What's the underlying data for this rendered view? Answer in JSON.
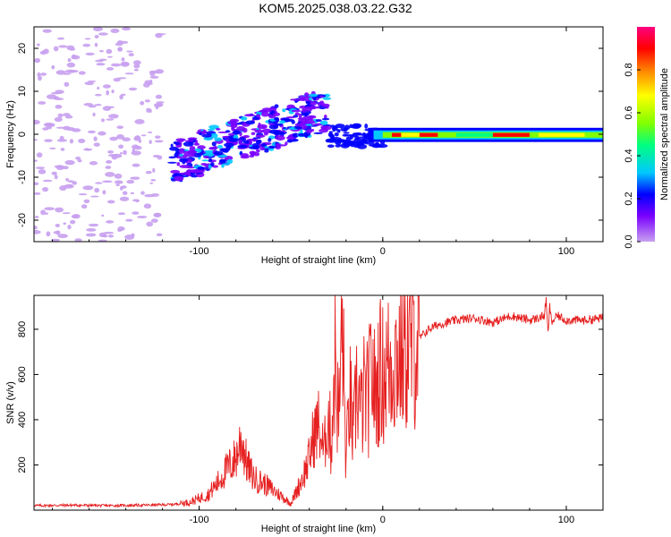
{
  "title": "KOM5.2025.038.03.22.G32",
  "chart_data": [
    {
      "type": "heatmap",
      "xlabel": "Height of straight line (km)",
      "ylabel": "Frequency (Hz)",
      "xlim": [
        -190,
        120
      ],
      "ylim": [
        -25,
        25
      ],
      "xticks": [
        -100,
        0,
        100
      ],
      "yticks": [
        -20,
        -10,
        0,
        10,
        20
      ],
      "colorbar": {
        "label": "Normalized spectral amplitude",
        "range": [
          0,
          1
        ],
        "ticks": [
          0.0,
          0.2,
          0.4,
          0.6,
          0.8
        ],
        "colors": [
          "#c8a0f0",
          "#7a00ff",
          "#0000ff",
          "#00c8ff",
          "#00ff80",
          "#80ff00",
          "#ffff00",
          "#ff8000",
          "#ff0000",
          "#ff0080"
        ]
      },
      "features": [
        {
          "x_range": [
            -190,
            -120
          ],
          "freq_range": [
            -25,
            25
          ],
          "amplitude": 0.03,
          "note": "sparse noise"
        },
        {
          "x_range": [
            -115,
            -30
          ],
          "freq_range": [
            -12,
            10
          ],
          "amplitude": 0.1
        },
        {
          "x_range": [
            -30,
            0
          ],
          "freq_range": [
            -3,
            2
          ],
          "amplitude": 0.2
        },
        {
          "x_range": [
            0,
            120
          ],
          "freq_range": [
            -1.5,
            1
          ],
          "amplitude": 0.9
        }
      ]
    },
    {
      "type": "line",
      "xlabel": "Height of straight line (km)",
      "ylabel": "SNR (v/v)",
      "xlim": [
        -190,
        120
      ],
      "ylim": [
        0,
        950
      ],
      "xticks": [
        -100,
        0,
        100
      ],
      "yticks": [
        200,
        400,
        600,
        800
      ],
      "color": "#e62020",
      "x": [
        -190,
        -170,
        -150,
        -130,
        -115,
        -105,
        -95,
        -90,
        -85,
        -80,
        -77,
        -74,
        -70,
        -65,
        -60,
        -55,
        -50,
        -45,
        -42,
        -40,
        -38,
        -35,
        -32,
        -30,
        -28,
        -26,
        -24,
        -22,
        -20,
        -18,
        -16,
        -14,
        -12,
        -10,
        -8,
        -6,
        -4,
        -2,
        0,
        5,
        10,
        15,
        20,
        25,
        30,
        40,
        50,
        60,
        70,
        80,
        85,
        88,
        89,
        90,
        91,
        92,
        95,
        100,
        110,
        120
      ],
      "y": [
        20,
        22,
        20,
        22,
        25,
        35,
        70,
        120,
        180,
        230,
        320,
        200,
        140,
        120,
        90,
        60,
        30,
        120,
        180,
        230,
        320,
        380,
        250,
        420,
        300,
        700,
        380,
        840,
        200,
        520,
        300,
        580,
        420,
        520,
        480,
        640,
        500,
        620,
        600,
        660,
        700,
        730,
        760,
        800,
        820,
        840,
        850,
        830,
        860,
        840,
        850,
        860,
        930,
        780,
        900,
        830,
        860,
        840,
        840,
        850
      ]
    }
  ]
}
